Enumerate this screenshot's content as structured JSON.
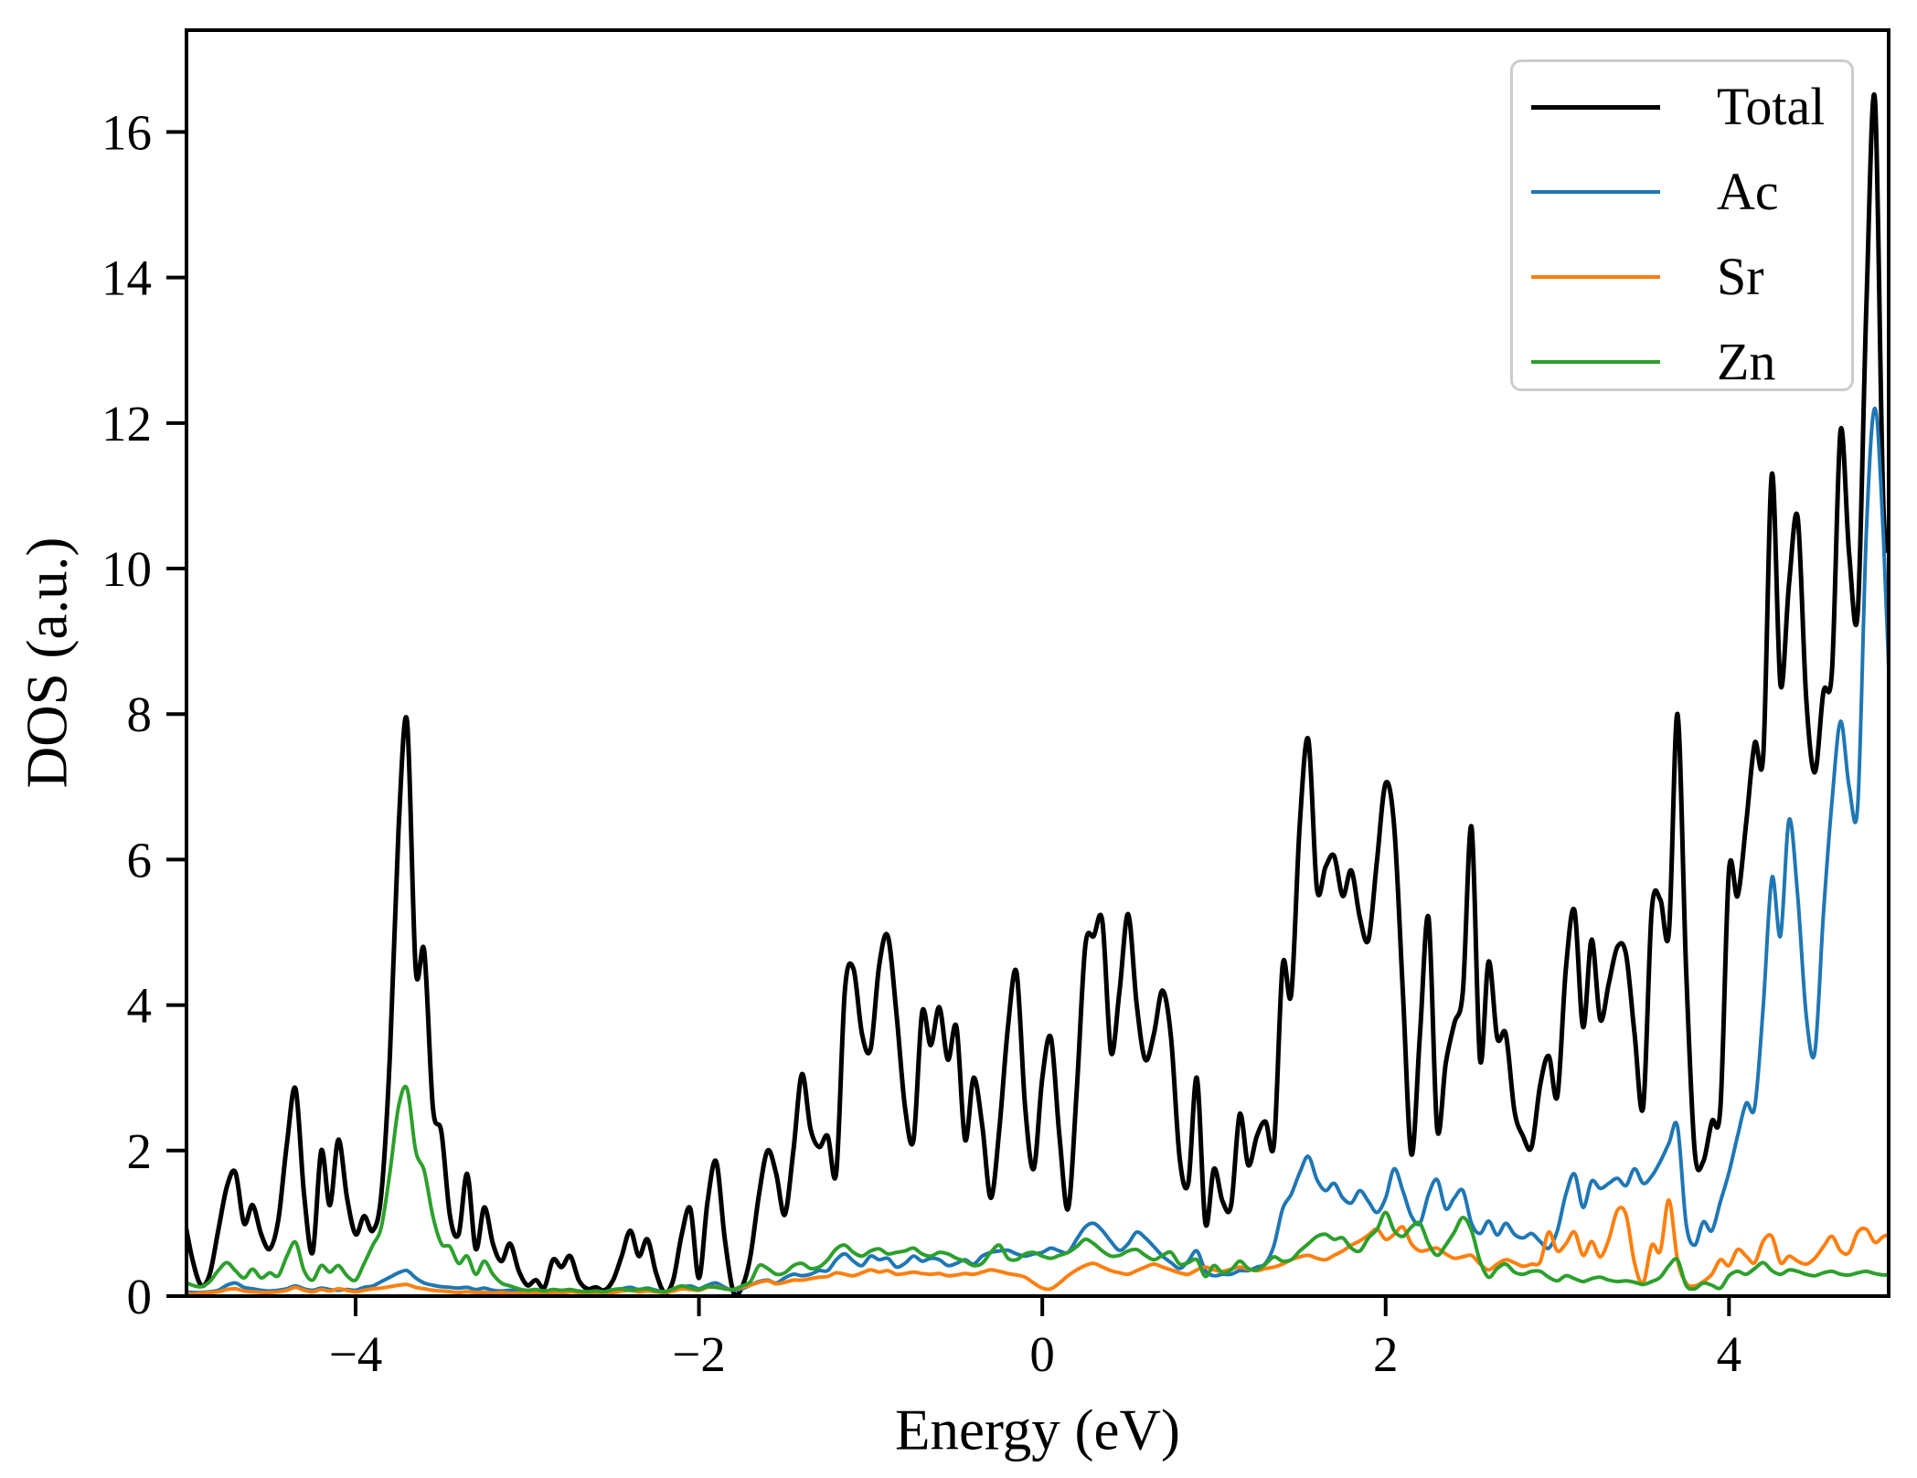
{
  "chart_data": {
    "type": "line",
    "title": "",
    "xlabel": "Energy (eV)",
    "ylabel": "DOS (a.u.)",
    "xlim": [
      -4.985,
      4.93
    ],
    "ylim": [
      0,
      17.4
    ],
    "grid": false,
    "legend_position": "upper right",
    "x_start": -5.0,
    "x_step": 0.05,
    "n_points": 200,
    "xticks": [
      {
        "value": -4,
        "label": "−4"
      },
      {
        "value": -2,
        "label": "−2"
      },
      {
        "value": 0,
        "label": "0"
      },
      {
        "value": 2,
        "label": "2"
      },
      {
        "value": 4,
        "label": "4"
      }
    ],
    "yticks": [
      {
        "value": 0,
        "label": "0"
      },
      {
        "value": 2,
        "label": "2"
      },
      {
        "value": 4,
        "label": "4"
      },
      {
        "value": 6,
        "label": "6"
      },
      {
        "value": 8,
        "label": "8"
      },
      {
        "value": 10,
        "label": "10"
      },
      {
        "value": 12,
        "label": "12"
      },
      {
        "value": 14,
        "label": "14"
      },
      {
        "value": 16,
        "label": "16"
      }
    ],
    "series": [
      {
        "name": "Total",
        "color": "#000000",
        "values": [
          1.1,
          0.5,
          0.15,
          0.3,
          0.9,
          1.5,
          1.7,
          1.0,
          1.25,
          0.85,
          0.65,
          1.05,
          2.1,
          2.85,
          1.4,
          0.6,
          2.0,
          1.25,
          2.15,
          1.35,
          0.85,
          1.1,
          0.9,
          1.4,
          3.3,
          6.4,
          7.9,
          4.5,
          4.74,
          2.6,
          2.25,
          1.1,
          0.85,
          1.68,
          0.65,
          1.22,
          0.72,
          0.48,
          0.72,
          0.35,
          0.15,
          0.22,
          0.12,
          0.5,
          0.4,
          0.55,
          0.22,
          0.1,
          0.12,
          0.08,
          0.22,
          0.55,
          0.9,
          0.55,
          0.78,
          0.32,
          0.05,
          0.22,
          0.85,
          1.2,
          0.25,
          1.3,
          1.85,
          0.8,
          0.06,
          0.12,
          0.55,
          1.4,
          2.0,
          1.68,
          1.12,
          2.0,
          3.05,
          2.3,
          2.05,
          2.2,
          1.7,
          4.2,
          4.5,
          3.6,
          3.4,
          4.55,
          4.95,
          3.9,
          2.6,
          2.15,
          3.9,
          3.45,
          3.97,
          3.25,
          3.7,
          2.15,
          3.0,
          2.35,
          1.35,
          2.3,
          3.7,
          4.45,
          2.6,
          1.75,
          3.0,
          3.55,
          2.2,
          1.2,
          2.8,
          4.8,
          4.95,
          5.15,
          3.35,
          4.2,
          5.25,
          4.0,
          3.25,
          3.6,
          4.2,
          3.55,
          1.9,
          1.55,
          3.0,
          1.0,
          1.75,
          1.3,
          1.25,
          2.5,
          1.8,
          2.2,
          2.4,
          2.1,
          4.55,
          4.15,
          6.5,
          7.65,
          5.6,
          5.9,
          6.05,
          5.5,
          5.85,
          5.2,
          4.9,
          6.0,
          7.05,
          6.45,
          4.2,
          1.95,
          3.6,
          5.2,
          2.3,
          3.2,
          3.75,
          4.2,
          6.45,
          3.25,
          4.6,
          3.55,
          3.6,
          2.55,
          2.2,
          2.05,
          2.9,
          3.3,
          2.75,
          4.5,
          5.3,
          3.7,
          4.9,
          3.8,
          4.3,
          4.8,
          4.7,
          3.6,
          2.6,
          5.3,
          5.45,
          5.0,
          8.0,
          4.5,
          2.0,
          1.85,
          2.4,
          2.6,
          5.85,
          5.5,
          6.5,
          7.6,
          7.45,
          11.3,
          8.4,
          9.8,
          10.7,
          8.2,
          7.2,
          8.3,
          8.6,
          11.9,
          10.2,
          9.4,
          13.6,
          16.45,
          10.8,
          10.4
        ]
      },
      {
        "name": "Ac",
        "color": "#1f77b4",
        "values": [
          0.06,
          0.05,
          0.05,
          0.06,
          0.08,
          0.15,
          0.18,
          0.12,
          0.1,
          0.08,
          0.07,
          0.08,
          0.1,
          0.14,
          0.1,
          0.08,
          0.11,
          0.09,
          0.08,
          0.09,
          0.08,
          0.12,
          0.14,
          0.2,
          0.26,
          0.32,
          0.35,
          0.25,
          0.18,
          0.15,
          0.13,
          0.12,
          0.11,
          0.12,
          0.09,
          0.11,
          0.08,
          0.07,
          0.08,
          0.06,
          0.06,
          0.07,
          0.06,
          0.08,
          0.07,
          0.08,
          0.06,
          0.05,
          0.06,
          0.05,
          0.08,
          0.1,
          0.12,
          0.09,
          0.11,
          0.08,
          0.06,
          0.08,
          0.12,
          0.14,
          0.1,
          0.15,
          0.18,
          0.12,
          0.08,
          0.1,
          0.15,
          0.2,
          0.22,
          0.18,
          0.25,
          0.3,
          0.28,
          0.3,
          0.35,
          0.35,
          0.5,
          0.58,
          0.48,
          0.42,
          0.55,
          0.5,
          0.52,
          0.4,
          0.45,
          0.55,
          0.48,
          0.52,
          0.5,
          0.42,
          0.45,
          0.5,
          0.44,
          0.55,
          0.6,
          0.62,
          0.63,
          0.58,
          0.55,
          0.58,
          0.6,
          0.66,
          0.62,
          0.6,
          0.78,
          0.95,
          1.0,
          0.9,
          0.75,
          0.63,
          0.72,
          0.88,
          0.8,
          0.68,
          0.55,
          0.46,
          0.38,
          0.48,
          0.62,
          0.35,
          0.28,
          0.3,
          0.3,
          0.35,
          0.35,
          0.4,
          0.45,
          0.7,
          1.2,
          1.4,
          1.7,
          1.92,
          1.6,
          1.45,
          1.55,
          1.35,
          1.28,
          1.45,
          1.3,
          1.15,
          1.35,
          1.75,
          1.45,
          1.1,
          1.0,
          1.4,
          1.6,
          1.2,
          1.35,
          1.45,
          1.0,
          0.86,
          1.03,
          0.84,
          1.0,
          0.85,
          0.8,
          0.86,
          0.75,
          0.66,
          0.9,
          1.4,
          1.68,
          1.22,
          1.58,
          1.48,
          1.55,
          1.62,
          1.52,
          1.75,
          1.55,
          1.65,
          1.85,
          2.1,
          2.33,
          1.0,
          0.7,
          1.02,
          0.9,
          1.3,
          1.7,
          2.2,
          2.65,
          2.6,
          4.0,
          5.75,
          4.95,
          6.55,
          5.5,
          3.85,
          3.35,
          5.25,
          6.8,
          7.9,
          7.0,
          6.75,
          10.5,
          12.2,
          10.4,
          7.3
        ]
      },
      {
        "name": "Sr",
        "color": "#ff7f0e",
        "values": [
          0.04,
          0.03,
          0.04,
          0.05,
          0.06,
          0.09,
          0.1,
          0.07,
          0.06,
          0.05,
          0.05,
          0.06,
          0.08,
          0.12,
          0.08,
          0.06,
          0.09,
          0.07,
          0.1,
          0.08,
          0.06,
          0.08,
          0.1,
          0.11,
          0.13,
          0.15,
          0.16,
          0.12,
          0.1,
          0.08,
          0.07,
          0.06,
          0.05,
          0.06,
          0.05,
          0.05,
          0.04,
          0.05,
          0.04,
          0.04,
          0.04,
          0.05,
          0.04,
          0.05,
          0.04,
          0.06,
          0.05,
          0.04,
          0.05,
          0.05,
          0.05,
          0.07,
          0.08,
          0.06,
          0.07,
          0.06,
          0.05,
          0.07,
          0.1,
          0.09,
          0.08,
          0.12,
          0.13,
          0.1,
          0.09,
          0.12,
          0.15,
          0.19,
          0.21,
          0.17,
          0.19,
          0.22,
          0.22,
          0.24,
          0.26,
          0.27,
          0.32,
          0.3,
          0.28,
          0.32,
          0.36,
          0.33,
          0.35,
          0.3,
          0.31,
          0.33,
          0.31,
          0.3,
          0.31,
          0.28,
          0.29,
          0.31,
          0.3,
          0.33,
          0.36,
          0.34,
          0.31,
          0.29,
          0.26,
          0.18,
          0.11,
          0.1,
          0.18,
          0.28,
          0.36,
          0.42,
          0.45,
          0.4,
          0.35,
          0.32,
          0.3,
          0.35,
          0.4,
          0.44,
          0.4,
          0.36,
          0.32,
          0.3,
          0.36,
          0.4,
          0.36,
          0.34,
          0.37,
          0.4,
          0.37,
          0.35,
          0.38,
          0.4,
          0.44,
          0.5,
          0.54,
          0.56,
          0.52,
          0.5,
          0.56,
          0.62,
          0.7,
          0.76,
          0.84,
          0.92,
          0.78,
          0.85,
          0.95,
          0.72,
          0.62,
          0.64,
          0.66,
          0.58,
          0.52,
          0.54,
          0.56,
          0.44,
          0.36,
          0.44,
          0.5,
          0.46,
          0.41,
          0.44,
          0.47,
          0.88,
          0.62,
          0.72,
          0.88,
          0.56,
          0.75,
          0.54,
          0.78,
          1.18,
          1.12,
          0.45,
          0.18,
          0.7,
          0.62,
          1.32,
          0.5,
          0.18,
          0.14,
          0.2,
          0.3,
          0.5,
          0.42,
          0.64,
          0.55,
          0.46,
          0.76,
          0.82,
          0.46,
          0.55,
          0.48,
          0.44,
          0.52,
          0.68,
          0.82,
          0.62,
          0.6,
          0.88,
          0.92,
          0.74,
          0.82,
          0.85
        ]
      },
      {
        "name": "Zn",
        "color": "#2ca02c",
        "values": [
          0.2,
          0.15,
          0.13,
          0.2,
          0.35,
          0.46,
          0.35,
          0.25,
          0.37,
          0.25,
          0.32,
          0.28,
          0.55,
          0.74,
          0.35,
          0.22,
          0.42,
          0.33,
          0.42,
          0.28,
          0.22,
          0.45,
          0.7,
          0.95,
          1.7,
          2.6,
          2.85,
          2.0,
          1.72,
          1.1,
          0.72,
          0.68,
          0.45,
          0.55,
          0.3,
          0.48,
          0.3,
          0.18,
          0.14,
          0.1,
          0.08,
          0.09,
          0.07,
          0.09,
          0.08,
          0.09,
          0.07,
          0.06,
          0.07,
          0.06,
          0.09,
          0.1,
          0.08,
          0.09,
          0.1,
          0.07,
          0.06,
          0.1,
          0.14,
          0.11,
          0.09,
          0.13,
          0.12,
          0.1,
          0.09,
          0.14,
          0.2,
          0.42,
          0.38,
          0.3,
          0.32,
          0.42,
          0.45,
          0.38,
          0.4,
          0.5,
          0.65,
          0.7,
          0.6,
          0.55,
          0.62,
          0.65,
          0.58,
          0.6,
          0.62,
          0.66,
          0.58,
          0.55,
          0.6,
          0.58,
          0.52,
          0.48,
          0.42,
          0.45,
          0.6,
          0.7,
          0.52,
          0.5,
          0.58,
          0.6,
          0.55,
          0.52,
          0.56,
          0.6,
          0.68,
          0.78,
          0.72,
          0.62,
          0.55,
          0.56,
          0.62,
          0.64,
          0.56,
          0.5,
          0.56,
          0.6,
          0.44,
          0.46,
          0.5,
          0.27,
          0.42,
          0.32,
          0.36,
          0.48,
          0.38,
          0.36,
          0.44,
          0.54,
          0.48,
          0.5,
          0.62,
          0.72,
          0.82,
          0.85,
          0.78,
          0.8,
          0.66,
          0.62,
          0.8,
          0.92,
          1.15,
          0.9,
          0.82,
          0.95,
          1.0,
          0.72,
          0.56,
          0.7,
          0.88,
          1.08,
          0.9,
          0.48,
          0.26,
          0.38,
          0.44,
          0.33,
          0.3,
          0.34,
          0.34,
          0.26,
          0.21,
          0.28,
          0.24,
          0.2,
          0.24,
          0.26,
          0.22,
          0.2,
          0.21,
          0.19,
          0.16,
          0.2,
          0.26,
          0.42,
          0.5,
          0.15,
          0.1,
          0.18,
          0.15,
          0.11,
          0.28,
          0.34,
          0.3,
          0.38,
          0.46,
          0.35,
          0.3,
          0.36,
          0.34,
          0.3,
          0.28,
          0.32,
          0.34,
          0.3,
          0.29,
          0.32,
          0.34,
          0.31,
          0.29,
          0.3
        ]
      }
    ]
  }
}
